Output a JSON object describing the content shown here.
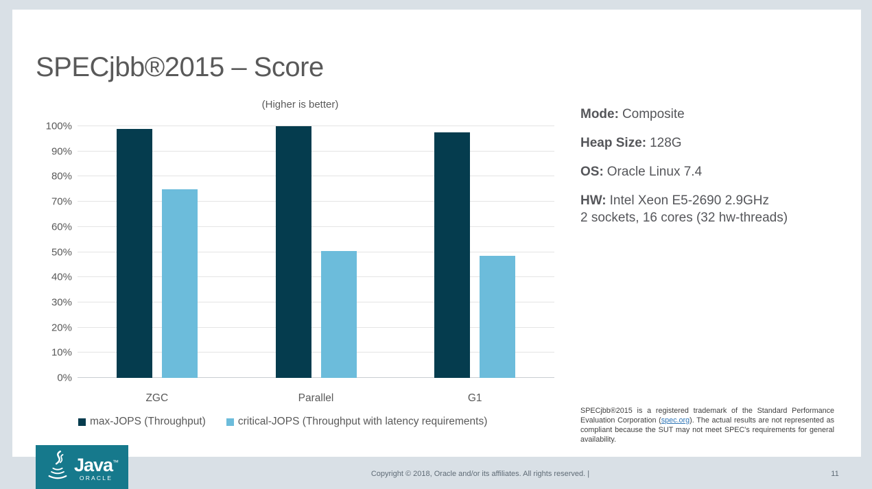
{
  "slide": {
    "title": "SPECjbb®2015 – Score"
  },
  "chart_data": {
    "type": "bar",
    "title": "(Higher is better)",
    "categories": [
      "ZGC",
      "Parallel",
      "G1"
    ],
    "series": [
      {
        "name": "max-JOPS (Throughput)",
        "color": "#053c4e",
        "values": [
          99,
          100,
          97.5
        ]
      },
      {
        "name": "critical-JOPS (Throughput with latency requirements)",
        "color": "#6cbcdb",
        "values": [
          75,
          50.5,
          48.5
        ]
      }
    ],
    "ylabel": "",
    "xlabel": "",
    "ylim": [
      0,
      100
    ],
    "ytick_labels": [
      "0%",
      "10%",
      "20%",
      "30%",
      "40%",
      "50%",
      "60%",
      "70%",
      "80%",
      "90%",
      "100%"
    ],
    "grid": true,
    "legend_position": "bottom"
  },
  "details": {
    "rows": [
      {
        "label": "Mode:",
        "value": "Composite"
      },
      {
        "label": "Heap Size:",
        "value": "128G"
      },
      {
        "label": "OS:",
        "value": "Oracle Linux 7.4"
      },
      {
        "label": "HW:",
        "value": "Intel Xeon E5-2690 2.9GHz",
        "value2": "2 sockets, 16 cores (32 hw-threads)"
      }
    ]
  },
  "disclaimer": {
    "pre": "SPECjbb®2015 is a registered trademark of the Standard Performance Evaluation Corporation (",
    "link": "spec.org",
    "post": "). The actual results are not represented as compliant because the SUT may not meet SPEC's requirements for general availability."
  },
  "logo": {
    "brand": "Java",
    "tm": "™",
    "subbrand": "ORACLE"
  },
  "footer": {
    "copyright": "Copyright © 2018, Oracle and/or its affiliates. All rights reserved.  |",
    "page": "11"
  },
  "colors": {
    "background": "#d9e0e6",
    "slide": "#ffffff",
    "max_jops_bar": "#053c4e",
    "critical_jops_bar": "#6cbcdb",
    "logo_teal": "#16798c",
    "text_gray": "#595959",
    "link_blue": "#2e75b6"
  }
}
